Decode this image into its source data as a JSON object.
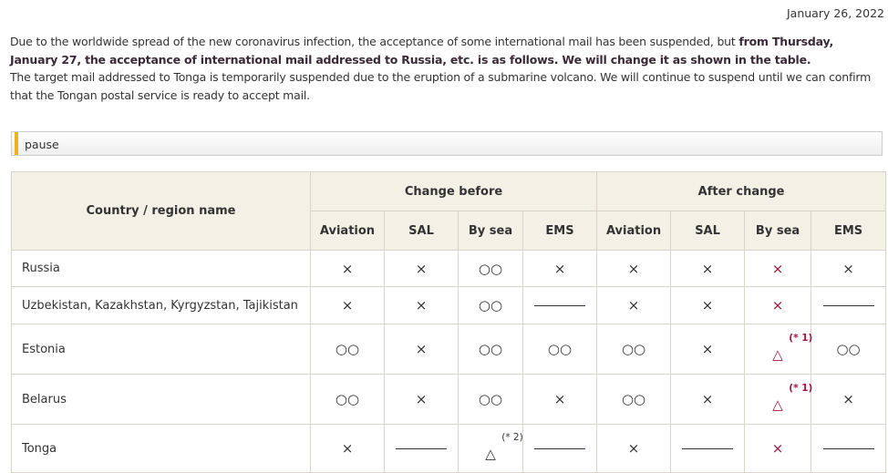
{
  "date": "January 26, 2022",
  "intro": {
    "p1_normal": "Due to the worldwide spread of the new coronavirus infection, the acceptance of some international mail has been suspended, but ",
    "p1_bold": "from Thursday, January 27, the acceptance of international mail addressed to Russia, etc. is as follows. We will change it as shown in the table.",
    "p2": "The target mail addressed to Tonga is temporarily suspended due to the eruption of a submarine volcano. We will continue to suspend until we can confirm that the Tongan postal service is ready to accept mail."
  },
  "section_title": "pause",
  "colors": {
    "accent": "#f0b020",
    "red": "#a0153e",
    "header_bg": "#f3f1e6"
  },
  "table": {
    "country_header": "Country / region name",
    "group_headers": [
      "Change before",
      "After change"
    ],
    "sub_headers": [
      "Aviation",
      "SAL",
      "By sea",
      "EMS",
      "Aviation",
      "SAL",
      "By sea",
      "EMS"
    ],
    "rows": [
      {
        "country": "Russia",
        "cells": [
          {
            "s": "×"
          },
          {
            "s": "×"
          },
          {
            "s": "○○"
          },
          {
            "s": "×"
          },
          {
            "s": "×"
          },
          {
            "s": "×"
          },
          {
            "s": "×",
            "red": true
          },
          {
            "s": "×"
          }
        ]
      },
      {
        "country": "Uzbekistan, Kazakhstan, Kyrgyzstan, Tajikistan",
        "cells": [
          {
            "s": "×"
          },
          {
            "s": "×"
          },
          {
            "s": "○○"
          },
          {
            "s": "—"
          },
          {
            "s": "×"
          },
          {
            "s": "×"
          },
          {
            "s": "×",
            "red": true
          },
          {
            "s": "—"
          }
        ]
      },
      {
        "country": "Estonia",
        "cells": [
          {
            "s": "○○"
          },
          {
            "s": "×"
          },
          {
            "s": "○○"
          },
          {
            "s": "○○"
          },
          {
            "s": "○○"
          },
          {
            "s": "×"
          },
          {
            "s": "△",
            "note": "(* 1)",
            "red": true
          },
          {
            "s": "○○"
          }
        ]
      },
      {
        "country": "Belarus",
        "cells": [
          {
            "s": "○○"
          },
          {
            "s": "×"
          },
          {
            "s": "○○"
          },
          {
            "s": "×"
          },
          {
            "s": "○○"
          },
          {
            "s": "×"
          },
          {
            "s": "△",
            "note": "(* 1)",
            "red": true
          },
          {
            "s": "×"
          }
        ]
      },
      {
        "country": "Tonga",
        "cells": [
          {
            "s": "×"
          },
          {
            "s": "—"
          },
          {
            "s": "△",
            "note": "(* 2)"
          },
          {
            "s": "—"
          },
          {
            "s": "×"
          },
          {
            "s": "—"
          },
          {
            "s": "×",
            "red": true
          },
          {
            "s": "—"
          }
        ]
      }
    ]
  }
}
